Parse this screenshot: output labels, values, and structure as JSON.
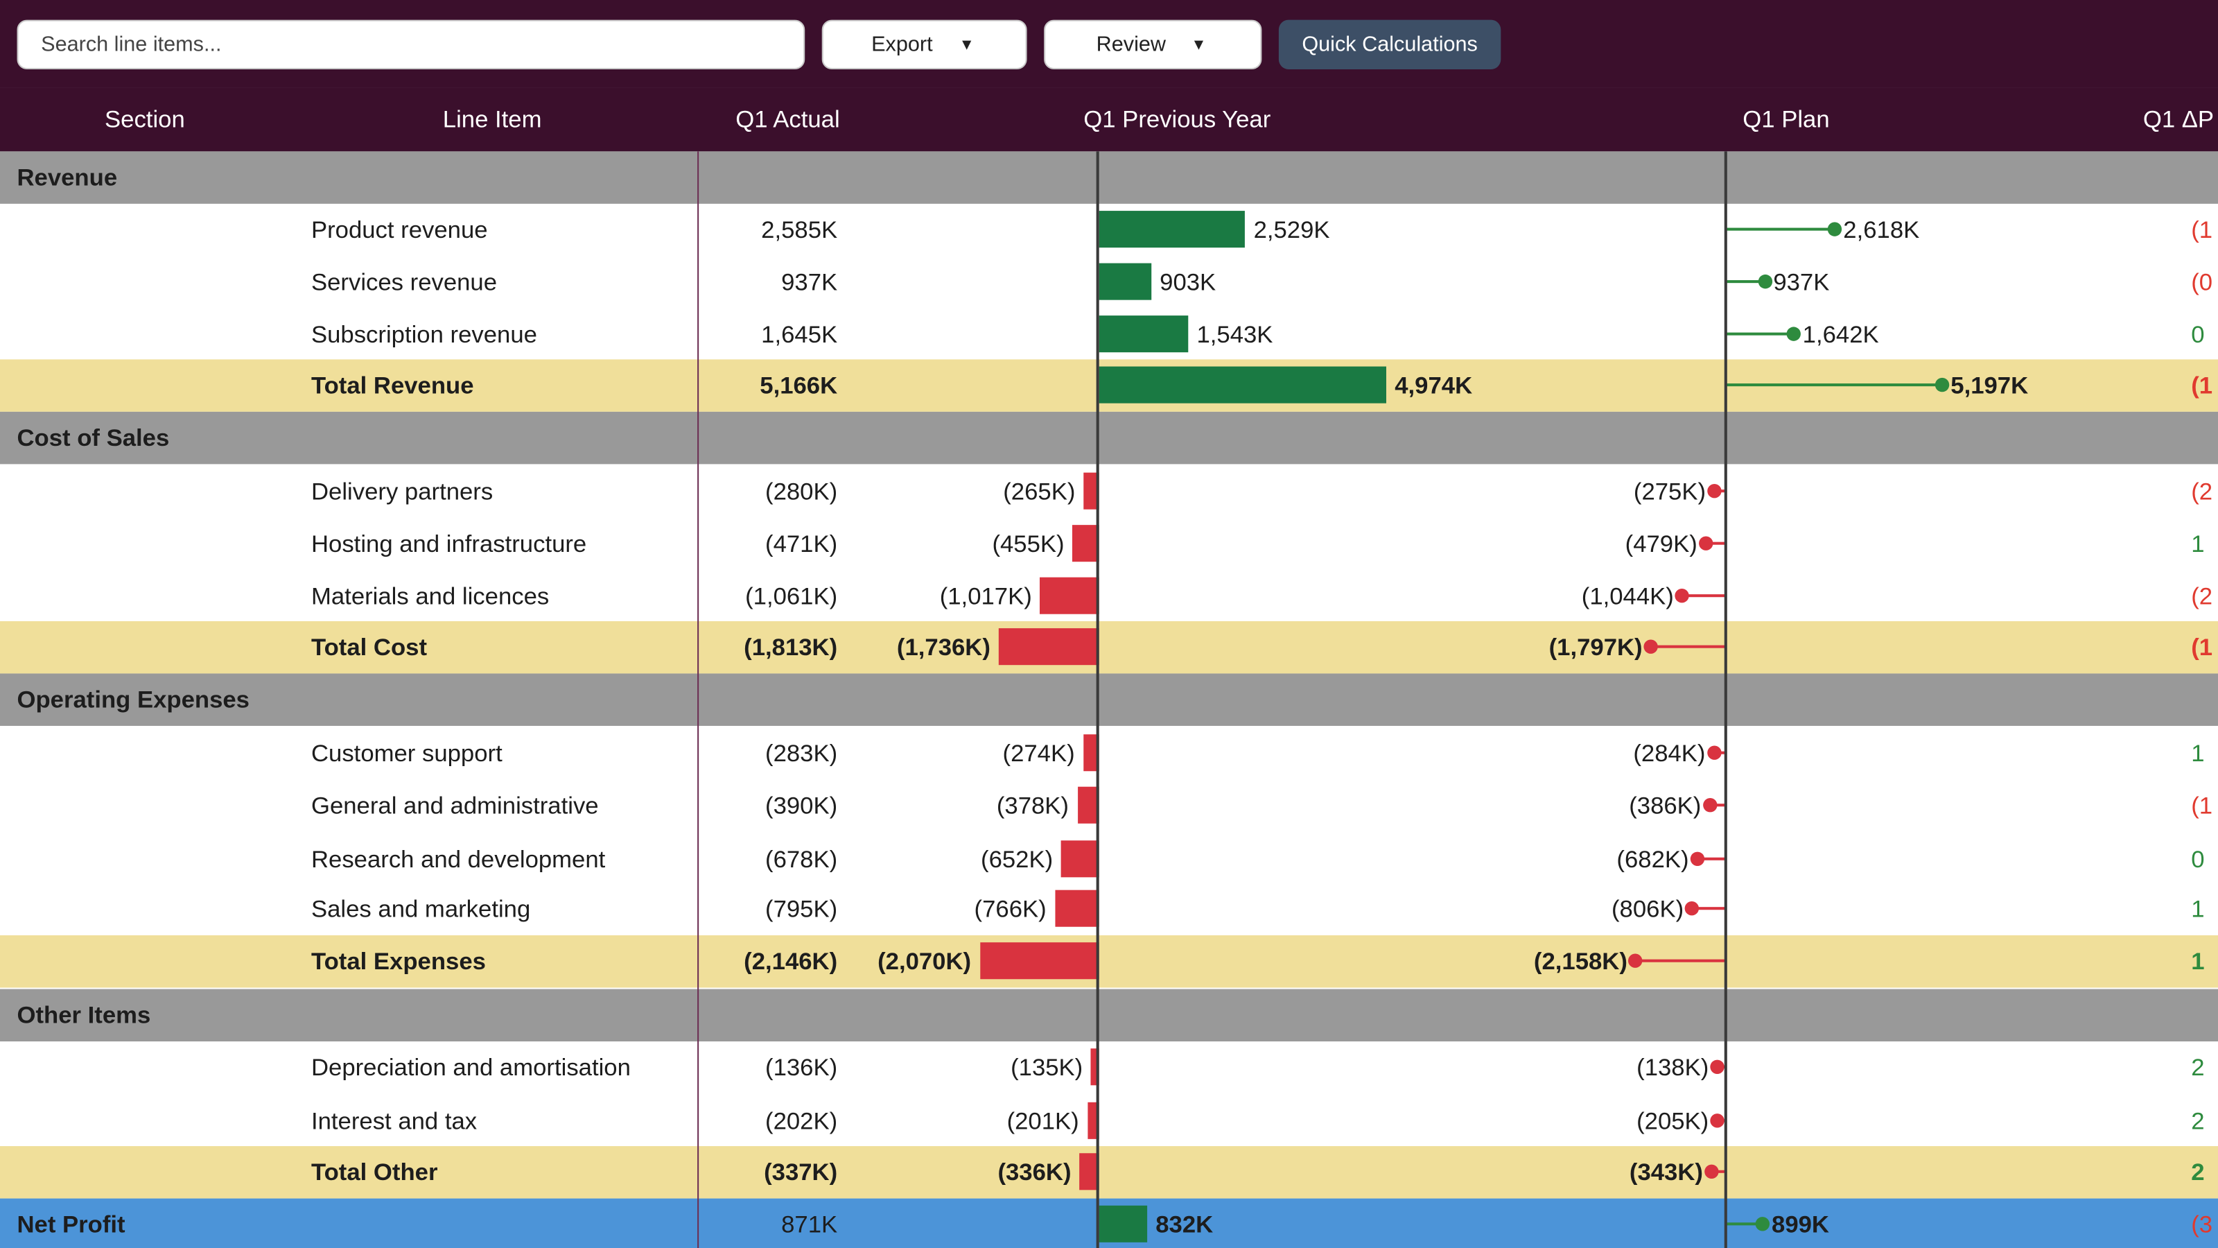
{
  "toolbar": {
    "search_placeholder": "Search line items...",
    "export_label": "Export",
    "review_label": "Review",
    "quick_calc_label": "Quick Calculations",
    "dropdown_arrow": "▼"
  },
  "columns": {
    "section": "Section",
    "line_item": "Line Item",
    "q1_actual": "Q1 Actual",
    "q1_previous_year": "Q1 Previous Year",
    "q1_plan": "Q1 Plan",
    "q1_delta": "Q1 ΔP"
  },
  "sections": {
    "revenue": "Revenue",
    "cost_of_sales": "Cost of Sales",
    "operating_expenses": "Operating Expenses",
    "other_items": "Other Items",
    "net_profit": "Net Profit"
  },
  "rows": [
    {
      "item": "Product revenue",
      "actual": "2,585K",
      "prev": "2,529K",
      "plan": "2,618K",
      "delta": "(1",
      "prev_k": 2529,
      "plan_k": 2618
    },
    {
      "item": "Services revenue",
      "actual": "937K",
      "prev": "903K",
      "plan": "937K",
      "delta": "(0",
      "prev_k": 903,
      "plan_k": 937
    },
    {
      "item": "Subscription revenue",
      "actual": "1,645K",
      "prev": "1,543K",
      "plan": "1,642K",
      "delta": "0",
      "prev_k": 1543,
      "plan_k": 1642
    },
    {
      "item": "Total Revenue",
      "actual": "5,166K",
      "prev": "4,974K",
      "plan": "5,197K",
      "delta": "(1",
      "prev_k": 4974,
      "plan_k": 5197
    },
    {
      "item": "Delivery partners",
      "actual": "(280K)",
      "prev": "(265K)",
      "plan": "(275K)",
      "delta": "(2",
      "prev_k": -265,
      "plan_k": -275
    },
    {
      "item": "Hosting and infrastructure",
      "actual": "(471K)",
      "prev": "(455K)",
      "plan": "(479K)",
      "delta": "1",
      "prev_k": -455,
      "plan_k": -479
    },
    {
      "item": "Materials and licences",
      "actual": "(1,061K)",
      "prev": "(1,017K)",
      "plan": "(1,044K)",
      "delta": "(2",
      "prev_k": -1017,
      "plan_k": -1044
    },
    {
      "item": "Total Cost",
      "actual": "(1,813K)",
      "prev": "(1,736K)",
      "plan": "(1,797K)",
      "delta": "(1",
      "prev_k": -1736,
      "plan_k": -1797
    },
    {
      "item": "Customer support",
      "actual": "(283K)",
      "prev": "(274K)",
      "plan": "(284K)",
      "delta": "1",
      "prev_k": -274,
      "plan_k": -284
    },
    {
      "item": "General and administrative",
      "actual": "(390K)",
      "prev": "(378K)",
      "plan": "(386K)",
      "delta": "(1",
      "prev_k": -378,
      "plan_k": -386
    },
    {
      "item": "Research and development",
      "actual": "(678K)",
      "prev": "(652K)",
      "plan": "(682K)",
      "delta": "0",
      "prev_k": -652,
      "plan_k": -682
    },
    {
      "item": "Sales and marketing",
      "actual": "(795K)",
      "prev": "(766K)",
      "plan": "(806K)",
      "delta": "1",
      "prev_k": -766,
      "plan_k": -806
    },
    {
      "item": "Total Expenses",
      "actual": "(2,146K)",
      "prev": "(2,070K)",
      "plan": "(2,158K)",
      "delta": "1",
      "prev_k": -2070,
      "plan_k": -2158
    },
    {
      "item": "Depreciation and amortisation",
      "actual": "(136K)",
      "prev": "(135K)",
      "plan": "(138K)",
      "delta": "2",
      "prev_k": -135,
      "plan_k": -138
    },
    {
      "item": "Interest and tax",
      "actual": "(202K)",
      "prev": "(201K)",
      "plan": "(205K)",
      "delta": "2",
      "prev_k": -201,
      "plan_k": -205
    },
    {
      "item": "Total Other",
      "actual": "(337K)",
      "prev": "(336K)",
      "plan": "(343K)",
      "delta": "2",
      "prev_k": -336,
      "plan_k": -343
    },
    {
      "item": "",
      "actual": "871K",
      "prev": "832K",
      "plan": "899K",
      "delta": "(3",
      "prev_k": 832,
      "plan_k": 899
    }
  ],
  "colors": {
    "header_bg": "#3b0f2c",
    "section_bg": "#999999",
    "total_bg": "#f0df9a",
    "net_bg": "#4c94d8",
    "bar_positive": "#1a7a43",
    "bar_negative": "#d9333f",
    "delta_negative": "#e03a2f",
    "delta_positive": "#2e8b3e"
  }
}
